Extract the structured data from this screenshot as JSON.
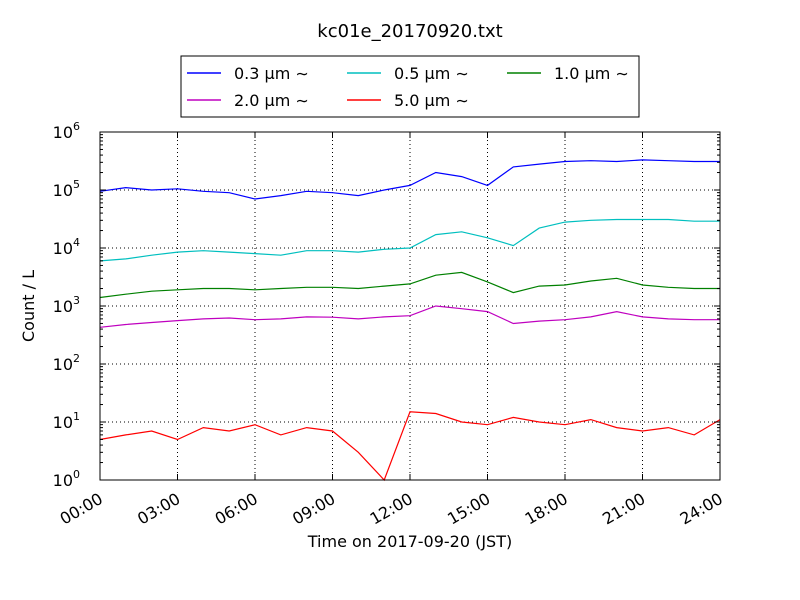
{
  "chart_data": {
    "type": "line",
    "title": "kc01e_20170920.txt",
    "xlabel": "Time on 2017-09-20 (JST)",
    "ylabel": "Count / L",
    "yscale": "log",
    "ylim_exp": [
      0,
      6
    ],
    "y_ticks": [
      {
        "base": "10",
        "exp": "0"
      },
      {
        "base": "10",
        "exp": "1"
      },
      {
        "base": "10",
        "exp": "2"
      },
      {
        "base": "10",
        "exp": "3"
      },
      {
        "base": "10",
        "exp": "4"
      },
      {
        "base": "10",
        "exp": "5"
      },
      {
        "base": "10",
        "exp": "6"
      }
    ],
    "x_ticks": [
      "00:00",
      "03:00",
      "06:00",
      "09:00",
      "12:00",
      "15:00",
      "18:00",
      "21:00",
      "24:00"
    ],
    "xlim_hours": [
      0,
      24
    ],
    "grid": true,
    "legend_position": "top-center, above plot",
    "x_hours": [
      0,
      1,
      2,
      3,
      4,
      5,
      6,
      7,
      8,
      9,
      10,
      11,
      12,
      13,
      14,
      15,
      16,
      17,
      18,
      19,
      20,
      21,
      22,
      23,
      24
    ],
    "series": [
      {
        "name": "0.3",
        "color": "#0000ff",
        "values": [
          95000,
          110000,
          100000,
          105000,
          95000,
          90000,
          70000,
          80000,
          95000,
          90000,
          80000,
          100000,
          120000,
          200000,
          170000,
          120000,
          250000,
          280000,
          310000,
          320000,
          310000,
          330000,
          320000,
          310000,
          310000
        ]
      },
      {
        "name": "0.5",
        "color": "#00bfbf",
        "values": [
          6000,
          6500,
          7500,
          8500,
          9000,
          8500,
          8000,
          7500,
          9000,
          9000,
          8500,
          9500,
          10000,
          17000,
          19000,
          15000,
          11000,
          22000,
          28000,
          30000,
          31000,
          31000,
          31000,
          29000,
          29000
        ]
      },
      {
        "name": "1.0",
        "color": "#008000",
        "values": [
          1400,
          1600,
          1800,
          1900,
          2000,
          2000,
          1900,
          2000,
          2100,
          2100,
          2000,
          2200,
          2400,
          3400,
          3800,
          2600,
          1700,
          2200,
          2300,
          2700,
          3000,
          2300,
          2100,
          2000,
          2000
        ]
      },
      {
        "name": "2.0",
        "color": "#bf00bf",
        "values": [
          430,
          480,
          520,
          560,
          600,
          620,
          580,
          600,
          650,
          640,
          600,
          650,
          680,
          1000,
          900,
          800,
          500,
          550,
          580,
          650,
          800,
          650,
          600,
          580,
          580
        ]
      },
      {
        "name": "5.0",
        "color": "#ff0000",
        "values": [
          5,
          6,
          7,
          5,
          8,
          7,
          9,
          6,
          8,
          7,
          3,
          1,
          15,
          14,
          10,
          9,
          12,
          10,
          9,
          11,
          8,
          7,
          8,
          6,
          11
        ]
      }
    ]
  },
  "legend": {
    "unit": "μm",
    "tilde": "∼"
  }
}
